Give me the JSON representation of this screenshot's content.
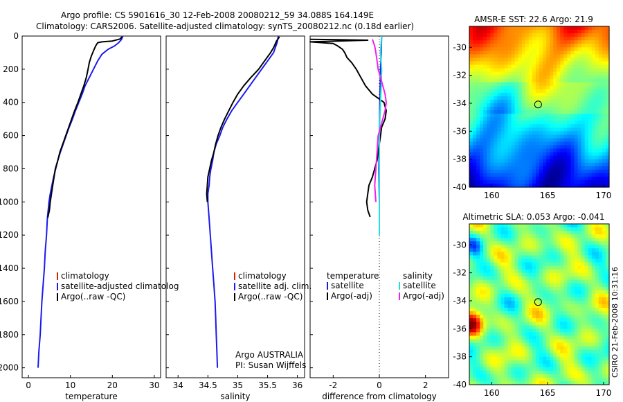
{
  "header": {
    "line1": "Argo profile: CS 5901616_30 12-Feb-2008 20080212_59 34.088S 164.149E",
    "line2": "Climatology: CARS2006. Satellite-adjusted climatology: synTS_20080212.nc (0.18d earlier)"
  },
  "colors": {
    "climatology": "#dd2200",
    "satellite": "#1a1aee",
    "argo": "#000000",
    "satellite_sal": "#22dddd",
    "argo_adj_sal": "#ee22ee"
  },
  "chart_data": [
    {
      "type": "line",
      "title": "",
      "xlabel": "temperature",
      "ylabel": "",
      "xlim": [
        -1.5,
        31.5
      ],
      "ylim": [
        2060,
        0
      ],
      "xticks": [
        0,
        10,
        20,
        30
      ],
      "yticks": [
        0,
        200,
        400,
        600,
        800,
        1000,
        1200,
        1400,
        1600,
        1800,
        2000
      ],
      "legend": [
        "climatology",
        "satellite-adjusted climatolog",
        "Argo(..raw -QC)"
      ],
      "series": [
        {
          "name": "satellite-adjusted climatology",
          "color": "#1a1aee",
          "points": [
            [
              22.5,
              0
            ],
            [
              22.2,
              20
            ],
            [
              21.5,
              40
            ],
            [
              20.5,
              60
            ],
            [
              19.0,
              80
            ],
            [
              17.5,
              110
            ],
            [
              16.5,
              150
            ],
            [
              15.5,
              200
            ],
            [
              14.5,
              250
            ],
            [
              13.5,
              300
            ],
            [
              12.8,
              350
            ],
            [
              12.0,
              400
            ],
            [
              11.2,
              450
            ],
            [
              10.5,
              500
            ],
            [
              9.7,
              550
            ],
            [
              9.0,
              600
            ],
            [
              8.3,
              650
            ],
            [
              7.6,
              700
            ],
            [
              7.0,
              750
            ],
            [
              6.5,
              800
            ],
            [
              6.0,
              850
            ],
            [
              5.6,
              900
            ],
            [
              5.2,
              950
            ],
            [
              4.9,
              1000
            ],
            [
              4.7,
              1050
            ],
            [
              4.5,
              1100
            ],
            [
              4.3,
              1200
            ],
            [
              4.0,
              1300
            ],
            [
              3.8,
              1400
            ],
            [
              3.5,
              1500
            ],
            [
              3.2,
              1600
            ],
            [
              3.0,
              1700
            ],
            [
              2.8,
              1800
            ],
            [
              2.5,
              1900
            ],
            [
              2.3,
              2000
            ]
          ]
        },
        {
          "name": "Argo(..raw -QC)",
          "color": "#000000",
          "points": [
            [
              22.3,
              5
            ],
            [
              21.8,
              18
            ],
            [
              20.0,
              30
            ],
            [
              17.5,
              35
            ],
            [
              16.5,
              40
            ],
            [
              16.0,
              60
            ],
            [
              15.5,
              90
            ],
            [
              15.0,
              120
            ],
            [
              14.5,
              160
            ],
            [
              14.2,
              200
            ],
            [
              13.8,
              250
            ],
            [
              13.2,
              300
            ],
            [
              12.5,
              350
            ],
            [
              11.8,
              400
            ],
            [
              11.0,
              450
            ],
            [
              10.3,
              500
            ],
            [
              9.6,
              550
            ],
            [
              8.9,
              600
            ],
            [
              8.2,
              650
            ],
            [
              7.5,
              700
            ],
            [
              7.0,
              750
            ],
            [
              6.4,
              800
            ],
            [
              6.1,
              850
            ],
            [
              5.8,
              900
            ],
            [
              5.5,
              950
            ],
            [
              5.2,
              1000
            ],
            [
              5.0,
              1050
            ],
            [
              4.6,
              1095
            ]
          ]
        }
      ]
    },
    {
      "type": "line",
      "title": "",
      "xlabel": "salinity",
      "ylabel": "",
      "xlim": [
        33.8,
        36.12
      ],
      "ylim": [
        2060,
        0
      ],
      "xticks": [
        34,
        34.5,
        35,
        35.5,
        36
      ],
      "legend": [
        "climatology",
        "satellite adj. clim.",
        "Argo(..raw -QC)"
      ],
      "annotation": [
        "Argo AUSTRALIA",
        "PI: Susan Wijffels"
      ],
      "series": [
        {
          "name": "satellite adj. clim.",
          "color": "#1a1aee",
          "points": [
            [
              35.68,
              0
            ],
            [
              35.66,
              40
            ],
            [
              35.6,
              100
            ],
            [
              35.5,
              150
            ],
            [
              35.4,
              200
            ],
            [
              35.3,
              250
            ],
            [
              35.2,
              300
            ],
            [
              35.1,
              350
            ],
            [
              35.0,
              400
            ],
            [
              34.9,
              450
            ],
            [
              34.82,
              500
            ],
            [
              34.75,
              550
            ],
            [
              34.7,
              600
            ],
            [
              34.64,
              650
            ],
            [
              34.6,
              700
            ],
            [
              34.58,
              750
            ],
            [
              34.55,
              800
            ],
            [
              34.53,
              850
            ],
            [
              34.52,
              900
            ],
            [
              34.5,
              950
            ],
            [
              34.5,
              1000
            ],
            [
              34.52,
              1100
            ],
            [
              34.54,
              1200
            ],
            [
              34.56,
              1300
            ],
            [
              34.58,
              1400
            ],
            [
              34.6,
              1500
            ],
            [
              34.62,
              1600
            ],
            [
              34.63,
              1700
            ],
            [
              34.64,
              1800
            ],
            [
              34.65,
              1900
            ],
            [
              34.66,
              2000
            ]
          ]
        },
        {
          "name": "Argo(..raw -QC)",
          "color": "#000000",
          "points": [
            [
              35.7,
              5
            ],
            [
              35.65,
              30
            ],
            [
              35.6,
              70
            ],
            [
              35.55,
              100
            ],
            [
              35.45,
              150
            ],
            [
              35.35,
              200
            ],
            [
              35.22,
              250
            ],
            [
              35.1,
              300
            ],
            [
              35.0,
              350
            ],
            [
              34.92,
              400
            ],
            [
              34.85,
              450
            ],
            [
              34.78,
              500
            ],
            [
              34.72,
              550
            ],
            [
              34.67,
              600
            ],
            [
              34.63,
              650
            ],
            [
              34.6,
              700
            ],
            [
              34.56,
              750
            ],
            [
              34.53,
              800
            ],
            [
              34.5,
              850
            ],
            [
              34.49,
              900
            ],
            [
              34.48,
              950
            ],
            [
              34.49,
              1000
            ]
          ]
        }
      ]
    },
    {
      "type": "line",
      "title": "",
      "xlabel": "difference from climatology",
      "ylabel": "",
      "xlim": [
        -3,
        3
      ],
      "ylim": [
        2060,
        0
      ],
      "xticks": [
        -2,
        0,
        2
      ],
      "legend": [
        "temperature",
        "satellite",
        "Argo(-adj)",
        "salinity",
        "satellite",
        "Argo(-adj)"
      ],
      "series": [
        {
          "name": "temperature satellite",
          "color": "#1a1aee",
          "points": [
            [
              0.1,
              0
            ],
            [
              0.08,
              100
            ],
            [
              0.05,
              200
            ],
            [
              0.02,
              400
            ],
            [
              0.0,
              600
            ],
            [
              -0.02,
              800
            ],
            [
              0.0,
              1000
            ],
            [
              0.0,
              1200
            ]
          ]
        },
        {
          "name": "temperature Argo(-adj)",
          "color": "#000000",
          "points": [
            [
              -3,
              20
            ],
            [
              -1.8,
              22
            ],
            [
              -0.5,
              25
            ],
            [
              -1.8,
              30
            ],
            [
              -3,
              35
            ],
            [
              -2,
              45
            ],
            [
              -1.8,
              60
            ],
            [
              -1.6,
              80
            ],
            [
              -1.5,
              100
            ],
            [
              -1.4,
              130
            ],
            [
              -1.2,
              160
            ],
            [
              -1.0,
              200
            ],
            [
              -0.8,
              250
            ],
            [
              -0.6,
              300
            ],
            [
              -0.3,
              350
            ],
            [
              0.2,
              400
            ],
            [
              0.3,
              450
            ],
            [
              0.25,
              500
            ],
            [
              0.1,
              550
            ],
            [
              0.05,
              600
            ],
            [
              0.0,
              650
            ],
            [
              -0.05,
              700
            ],
            [
              -0.1,
              750
            ],
            [
              -0.2,
              800
            ],
            [
              -0.3,
              850
            ],
            [
              -0.45,
              900
            ],
            [
              -0.5,
              950
            ],
            [
              -0.55,
              1000
            ],
            [
              -0.5,
              1050
            ],
            [
              -0.4,
              1090
            ]
          ]
        },
        {
          "name": "salinity satellite",
          "color": "#22dddd",
          "points": [
            [
              0.1,
              0
            ],
            [
              0.05,
              100
            ],
            [
              0.1,
              200
            ],
            [
              0.08,
              300
            ],
            [
              0.05,
              400
            ],
            [
              0.02,
              500
            ],
            [
              0.0,
              600
            ],
            [
              0.0,
              800
            ],
            [
              0.0,
              1000
            ],
            [
              0.0,
              1200
            ]
          ]
        },
        {
          "name": "salinity Argo(-adj)",
          "color": "#ee22ee",
          "points": [
            [
              -0.3,
              20
            ],
            [
              -0.2,
              60
            ],
            [
              -0.15,
              100
            ],
            [
              -0.1,
              150
            ],
            [
              -0.05,
              200
            ],
            [
              0.05,
              250
            ],
            [
              0.15,
              300
            ],
            [
              0.25,
              350
            ],
            [
              0.3,
              400
            ],
            [
              0.25,
              450
            ],
            [
              0.15,
              500
            ],
            [
              0.05,
              550
            ],
            [
              -0.05,
              600
            ],
            [
              -0.1,
              700
            ],
            [
              -0.15,
              800
            ],
            [
              -0.2,
              900
            ],
            [
              -0.15,
              1000
            ]
          ]
        }
      ]
    },
    {
      "type": "heatmap",
      "title": "AMSR-E SST: 22.6 Argo: 21.9",
      "xlim": [
        158,
        170.5
      ],
      "ylim": [
        -40,
        -28.5
      ],
      "xticks": [
        160,
        165,
        170
      ],
      "yticks": [
        -30,
        -32,
        -34,
        -36,
        -38,
        -40
      ],
      "float_position": [
        164.149,
        -34.088
      ]
    },
    {
      "type": "heatmap",
      "title": "Altimetric SLA: 0.053 Argo: -0.041",
      "xlim": [
        158,
        170.5
      ],
      "ylim": [
        -40,
        -28.5
      ],
      "xticks": [
        160,
        165,
        170
      ],
      "yticks": [
        -30,
        -32,
        -34,
        -36,
        -38,
        -40
      ],
      "float_position": [
        164.149,
        -34.088
      ]
    }
  ],
  "side_stamp": "CSIRO 21-Feb-2008 10:31:16"
}
